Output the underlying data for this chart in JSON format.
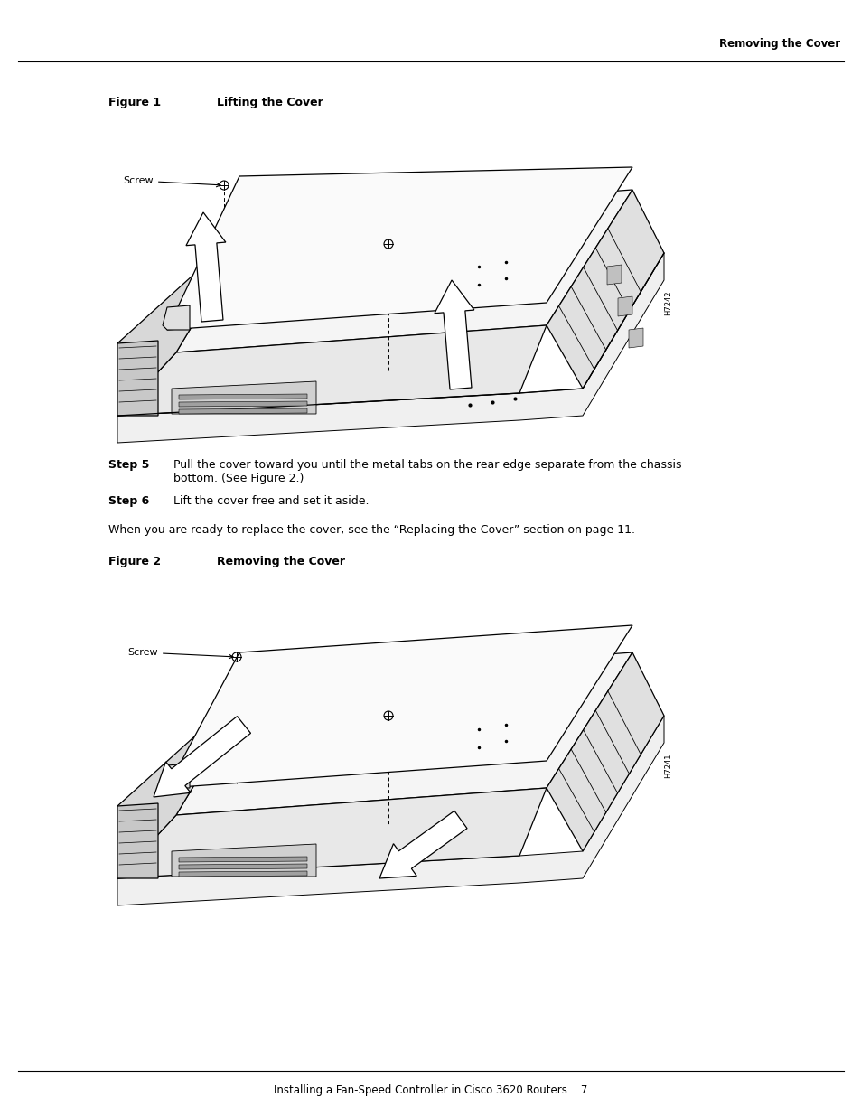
{
  "bg_color": "#ffffff",
  "header_text": "Removing the Cover",
  "footer_text": "Installing a Fan-Speed Controller in Cisco 3620 Routers    7",
  "figure1_label": "Figure 1",
  "figure1_title": "Lifting the Cover",
  "figure2_label": "Figure 2",
  "figure2_title": "Removing the Cover",
  "step5_bold": "Step 5",
  "step5_text": "Pull the cover toward you until the metal tabs on the rear edge separate from the chassis\nbottom. (See Figure 2.)",
  "step6_bold": "Step 6",
  "step6_text": "Lift the cover free and set it aside.",
  "when_text": "When you are ready to replace the cover, see the “Replacing the Cover” section on page 11.",
  "screw_label": "Screw",
  "fig1_id": "H7242",
  "fig2_id": "H7241",
  "lw": 0.9,
  "hatch_color": "#888888"
}
